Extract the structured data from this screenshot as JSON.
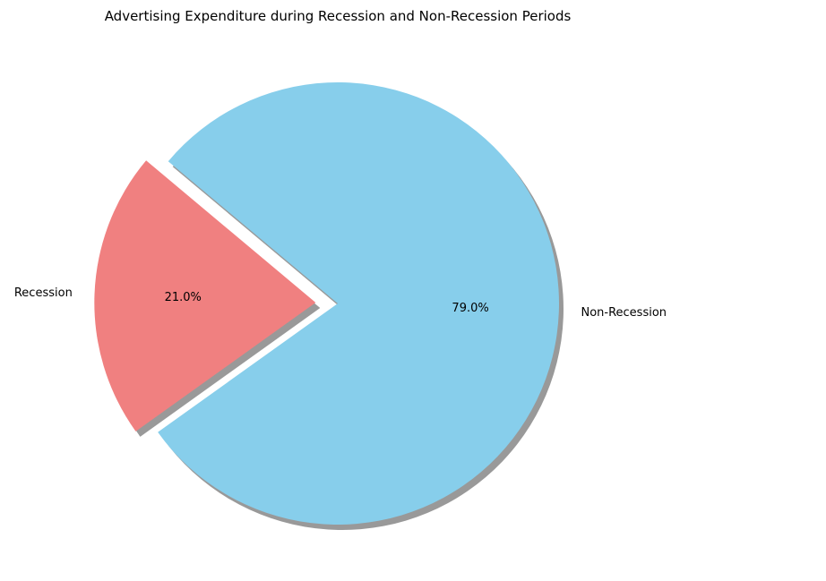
{
  "chart_data": {
    "type": "pie",
    "title": "Advertising Expenditure during Recession and Non-Recession Periods",
    "categories": [
      "Recession",
      "Non-Recession"
    ],
    "values": [
      21.0,
      79.0
    ],
    "percent_labels": [
      "21.0%",
      "79.0%"
    ],
    "colors": [
      "#f08080",
      "#87ceeb"
    ],
    "exploded": [
      true,
      false
    ],
    "shadow": true,
    "start_angle_deg": 140,
    "legend": "none"
  }
}
